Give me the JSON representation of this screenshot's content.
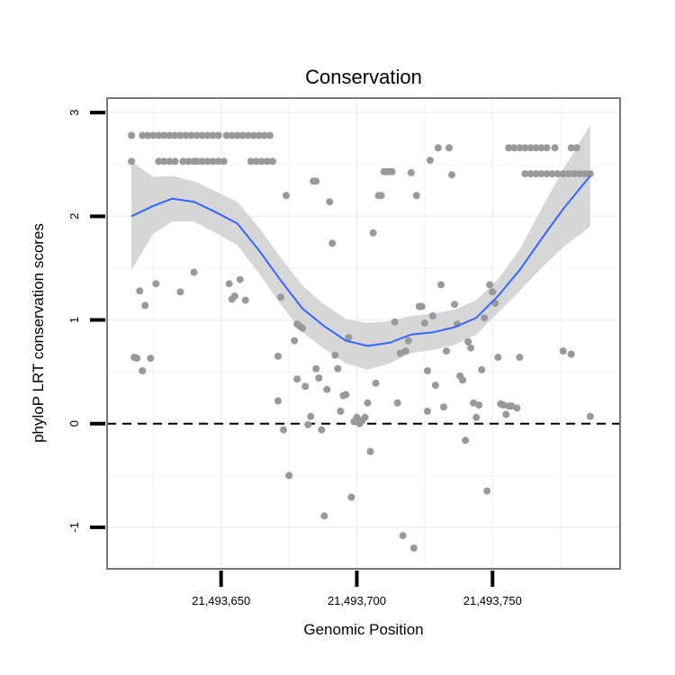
{
  "chart_data": {
    "type": "scatter",
    "title": "Conservation",
    "xlabel": "Genomic Position",
    "ylabel": "phyloP LRT conservation scores",
    "xlim": [
      21493608,
      21493797
    ],
    "ylim": [
      -1.4,
      3.14
    ],
    "x_ticks": [
      {
        "value": 21493650,
        "label": "21,493,650"
      },
      {
        "value": 21493700,
        "label": "21,493,700"
      },
      {
        "value": 21493750,
        "label": "21,493,750"
      }
    ],
    "y_ticks": [
      {
        "value": -1,
        "label": "-1"
      },
      {
        "value": 0,
        "label": "0"
      },
      {
        "value": 1,
        "label": "1"
      },
      {
        "value": 2,
        "label": "2"
      },
      {
        "value": 3,
        "label": "3"
      }
    ],
    "reference_line": {
      "y": 0,
      "style": "dashed"
    },
    "colors": {
      "points": "#999999",
      "smooth": "#3366ff",
      "ribbon": "#d6d6d6",
      "panel": "#ffffff",
      "grid": "#f2f2f2",
      "border": "#777777"
    },
    "points": [
      [
        21493617,
        2.53
      ],
      [
        21493618,
        0.64
      ],
      [
        21493619,
        0.63
      ],
      [
        21493620,
        1.28
      ],
      [
        21493621,
        0.51
      ],
      [
        21493622,
        1.14
      ],
      [
        21493624,
        0.63
      ],
      [
        21493626,
        1.35
      ],
      [
        21493617,
        2.78
      ],
      [
        21493621,
        2.78
      ],
      [
        21493623,
        2.78
      ],
      [
        21493625,
        2.78
      ],
      [
        21493627,
        2.78
      ],
      [
        21493629,
        2.78
      ],
      [
        21493631,
        2.78
      ],
      [
        21493633,
        2.78
      ],
      [
        21493635,
        2.78
      ],
      [
        21493637,
        2.78
      ],
      [
        21493639,
        2.78
      ],
      [
        21493641,
        2.78
      ],
      [
        21493643,
        2.78
      ],
      [
        21493645,
        2.78
      ],
      [
        21493647,
        2.78
      ],
      [
        21493649,
        2.78
      ],
      [
        21493652,
        2.78
      ],
      [
        21493654,
        2.78
      ],
      [
        21493656,
        2.78
      ],
      [
        21493658,
        2.78
      ],
      [
        21493660,
        2.78
      ],
      [
        21493662,
        2.78
      ],
      [
        21493664,
        2.78
      ],
      [
        21493666,
        2.78
      ],
      [
        21493668,
        2.78
      ],
      [
        21493627,
        2.53
      ],
      [
        21493629,
        2.53
      ],
      [
        21493631,
        2.53
      ],
      [
        21493633,
        2.53
      ],
      [
        21493636,
        2.53
      ],
      [
        21493638,
        2.53
      ],
      [
        21493640,
        2.53
      ],
      [
        21493641,
        2.53
      ],
      [
        21493643,
        2.53
      ],
      [
        21493645,
        2.53
      ],
      [
        21493647,
        2.53
      ],
      [
        21493649,
        2.53
      ],
      [
        21493651,
        2.53
      ],
      [
        21493661,
        2.53
      ],
      [
        21493663,
        2.53
      ],
      [
        21493665,
        2.53
      ],
      [
        21493667,
        2.53
      ],
      [
        21493669,
        2.53
      ],
      [
        21493635,
        1.27
      ],
      [
        21493640,
        1.46
      ],
      [
        21493653,
        1.35
      ],
      [
        21493654,
        1.2
      ],
      [
        21493655,
        1.23
      ],
      [
        21493657,
        1.39
      ],
      [
        21493659,
        1.19
      ],
      [
        21493672,
        1.22
      ],
      [
        21493671,
        0.65
      ],
      [
        21493671,
        0.22
      ],
      [
        21493673,
        -0.06
      ],
      [
        21493674,
        2.2
      ],
      [
        21493675,
        -0.5
      ],
      [
        21493677,
        0.8
      ],
      [
        21493678,
        0.43
      ],
      [
        21493678,
        0.96
      ],
      [
        21493679,
        0.94
      ],
      [
        21493680,
        0.92
      ],
      [
        21493681,
        0.36
      ],
      [
        21493682,
        -0.01
      ],
      [
        21493683,
        0.07
      ],
      [
        21493684,
        2.34
      ],
      [
        21493685,
        2.34
      ],
      [
        21493685,
        0.53
      ],
      [
        21493686,
        0.44
      ],
      [
        21493687,
        -0.06
      ],
      [
        21493688,
        -0.89
      ],
      [
        21493689,
        0.33
      ],
      [
        21493690,
        2.14
      ],
      [
        21493691,
        1.74
      ],
      [
        21493692,
        0.66
      ],
      [
        21493693,
        0.53
      ],
      [
        21493694,
        0.12
      ],
      [
        21493695,
        0.27
      ],
      [
        21493696,
        0.28
      ],
      [
        21493697,
        0.83
      ],
      [
        21493698,
        -0.71
      ],
      [
        21493699,
        0.02
      ],
      [
        21493700,
        0.06
      ],
      [
        21493701,
        0.0
      ],
      [
        21493702,
        0.03
      ],
      [
        21493703,
        0.06
      ],
      [
        21493704,
        0.2
      ],
      [
        21493705,
        -0.27
      ],
      [
        21493706,
        1.84
      ],
      [
        21493707,
        0.39
      ],
      [
        21493708,
        2.2
      ],
      [
        21493709,
        2.2
      ],
      [
        21493710,
        2.43
      ],
      [
        21493711,
        2.43
      ],
      [
        21493712,
        2.43
      ],
      [
        21493713,
        2.43
      ],
      [
        21493714,
        0.98
      ],
      [
        21493715,
        0.2
      ],
      [
        21493716,
        0.68
      ],
      [
        21493717,
        -1.08
      ],
      [
        21493718,
        0.7
      ],
      [
        21493719,
        0.8
      ],
      [
        21493720,
        2.42
      ],
      [
        21493721,
        -1.2
      ],
      [
        21493722,
        2.2
      ],
      [
        21493723,
        1.13
      ],
      [
        21493724,
        1.13
      ],
      [
        21493725,
        0.97
      ],
      [
        21493726,
        0.51
      ],
      [
        21493726,
        0.12
      ],
      [
        21493727,
        2.54
      ],
      [
        21493728,
        1.04
      ],
      [
        21493729,
        0.37
      ],
      [
        21493730,
        2.66
      ],
      [
        21493731,
        1.34
      ],
      [
        21493732,
        0.16
      ],
      [
        21493733,
        0.7
      ],
      [
        21493734,
        2.66
      ],
      [
        21493735,
        2.4
      ],
      [
        21493736,
        1.15
      ],
      [
        21493737,
        0.96
      ],
      [
        21493738,
        0.46
      ],
      [
        21493739,
        0.42
      ],
      [
        21493740,
        -0.16
      ],
      [
        21493741,
        0.79
      ],
      [
        21493742,
        0.73
      ],
      [
        21493743,
        0.2
      ],
      [
        21493744,
        0.06
      ],
      [
        21493745,
        0.18
      ],
      [
        21493746,
        0.52
      ],
      [
        21493747,
        1.02
      ],
      [
        21493748,
        -0.65
      ],
      [
        21493749,
        1.34
      ],
      [
        21493750,
        1.27
      ],
      [
        21493751,
        1.16
      ],
      [
        21493752,
        0.64
      ],
      [
        21493753,
        0.19
      ],
      [
        21493754,
        0.18
      ],
      [
        21493755,
        0.09
      ],
      [
        21493756,
        0.17
      ],
      [
        21493757,
        0.17
      ],
      [
        21493759,
        0.15
      ],
      [
        21493760,
        0.64
      ],
      [
        21493756,
        2.66
      ],
      [
        21493758,
        2.66
      ],
      [
        21493760,
        2.66
      ],
      [
        21493762,
        2.66
      ],
      [
        21493764,
        2.66
      ],
      [
        21493766,
        2.66
      ],
      [
        21493768,
        2.66
      ],
      [
        21493770,
        2.66
      ],
      [
        21493773,
        2.66
      ],
      [
        21493779,
        2.66
      ],
      [
        21493781,
        2.66
      ],
      [
        21493762,
        2.41
      ],
      [
        21493764,
        2.41
      ],
      [
        21493766,
        2.41
      ],
      [
        21493768,
        2.41
      ],
      [
        21493770,
        2.41
      ],
      [
        21493772,
        2.41
      ],
      [
        21493774,
        2.41
      ],
      [
        21493776,
        2.41
      ],
      [
        21493778,
        2.41
      ],
      [
        21493780,
        2.41
      ],
      [
        21493782,
        2.41
      ],
      [
        21493784,
        2.41
      ],
      [
        21493786,
        2.41
      ],
      [
        21493776,
        0.7
      ],
      [
        21493779,
        0.67
      ],
      [
        21493786,
        0.07
      ]
    ],
    "smooth": [
      [
        21493617,
        2.0,
        1.48,
        2.53
      ],
      [
        21493625,
        2.1,
        1.83,
        2.38
      ],
      [
        21493632,
        2.17,
        1.95,
        2.39
      ],
      [
        21493640,
        2.14,
        1.95,
        2.34
      ],
      [
        21493648,
        2.04,
        1.84,
        2.24
      ],
      [
        21493656,
        1.93,
        1.72,
        2.14
      ],
      [
        21493664,
        1.67,
        1.45,
        1.89
      ],
      [
        21493672,
        1.38,
        1.15,
        1.6
      ],
      [
        21493680,
        1.11,
        0.88,
        1.33
      ],
      [
        21493688,
        0.94,
        0.72,
        1.15
      ],
      [
        21493696,
        0.8,
        0.58,
        1.01
      ],
      [
        21493704,
        0.75,
        0.52,
        0.97
      ],
      [
        21493712,
        0.78,
        0.58,
        0.99
      ],
      [
        21493720,
        0.86,
        0.68,
        1.04
      ],
      [
        21493728,
        0.88,
        0.71,
        1.06
      ],
      [
        21493736,
        0.93,
        0.76,
        1.1
      ],
      [
        21493744,
        1.02,
        0.86,
        1.19
      ],
      [
        21493752,
        1.23,
        1.07,
        1.39
      ],
      [
        21493760,
        1.48,
        1.28,
        1.68
      ],
      [
        21493768,
        1.78,
        1.5,
        2.07
      ],
      [
        21493776,
        2.07,
        1.7,
        2.45
      ],
      [
        21493786,
        2.39,
        1.9,
        2.88
      ]
    ]
  }
}
